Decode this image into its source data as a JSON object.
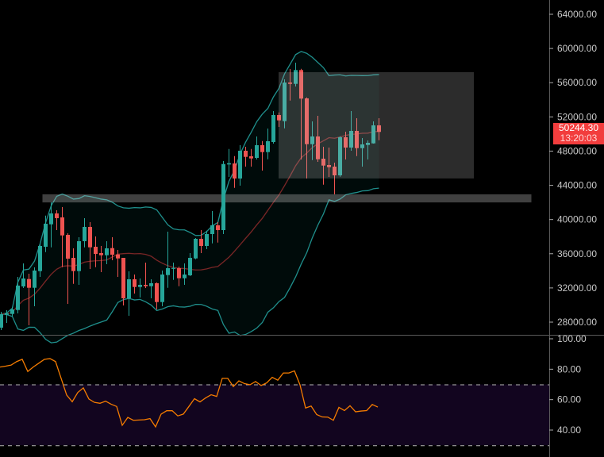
{
  "chart_data": {
    "type": "candlestick",
    "price_axis": {
      "ticks": [
        "64000.00",
        "60000.00",
        "56000.00",
        "52000.00",
        "48000.00",
        "44000.00",
        "40000.00",
        "36000.00",
        "32000.00",
        "28000.00"
      ],
      "range": [
        28000,
        64000
      ]
    },
    "rsi_axis": {
      "ticks": [
        "100.00",
        "80.00",
        "60.00",
        "40.00"
      ],
      "range": [
        30,
        100
      ],
      "bands": [
        30,
        70
      ]
    },
    "last_price": {
      "value": "50244.30",
      "countdown": "13:20:03"
    },
    "colors": {
      "up": "#26a69a",
      "down": "#ef5350",
      "band": "#1f8f8c",
      "basis": "#7a2626",
      "rsi": "#f57c00",
      "rsi_fill": "#12051f",
      "last_price": "#f23d3d"
    },
    "candles_ohlc": [
      [
        27352,
        29207,
        27074,
        28929
      ],
      [
        28864,
        29393,
        27909,
        29022
      ],
      [
        28957,
        29792,
        28651,
        29486
      ],
      [
        29421,
        33290,
        29022,
        32269
      ],
      [
        32176,
        34867,
        31991,
        33104
      ],
      [
        33039,
        33661,
        27630,
        32019
      ],
      [
        32019,
        34403,
        29857,
        34032
      ],
      [
        33967,
        37094,
        33290,
        36908
      ],
      [
        36815,
        40462,
        36194,
        39506
      ],
      [
        39441,
        42011,
        36750,
        40712
      ],
      [
        40712,
        41083,
        38764,
        40155
      ],
      [
        40248,
        41454,
        34431,
        38142
      ],
      [
        38207,
        38393,
        30135,
        35424
      ],
      [
        35516,
        36630,
        32483,
        33967
      ],
      [
        33967,
        37929,
        32362,
        37465
      ],
      [
        37465,
        40155,
        36750,
        39135
      ],
      [
        39135,
        39692,
        34218,
        36750
      ],
      [
        36815,
        38022,
        34431,
        35980
      ],
      [
        36073,
        36908,
        33846,
        35823
      ],
      [
        35823,
        37465,
        34774,
        36630
      ],
      [
        36658,
        37929,
        35238,
        35888
      ],
      [
        35915,
        36444,
        33290,
        35451
      ],
      [
        35516,
        35516,
        29950,
        30785
      ],
      [
        30785,
        33939,
        28744,
        33011
      ],
      [
        33011,
        33568,
        31341,
        32111
      ],
      [
        32111,
        33104,
        30877,
        32362
      ],
      [
        32362,
        34960,
        31991,
        32204
      ],
      [
        32204,
        33011,
        30785,
        32548
      ],
      [
        32548,
        32640,
        29486,
        30349
      ],
      [
        30349,
        34032,
        29857,
        33568
      ],
      [
        33503,
        38578,
        32019,
        34310
      ],
      [
        34245,
        34960,
        32946,
        34338
      ],
      [
        34310,
        34496,
        32204,
        33132
      ],
      [
        33132,
        34867,
        32362,
        33568
      ],
      [
        33475,
        36073,
        33383,
        35516
      ],
      [
        35451,
        37836,
        35359,
        37743
      ],
      [
        37743,
        38764,
        36073,
        36908
      ],
      [
        36908,
        38699,
        36537,
        38300
      ],
      [
        38300,
        40991,
        37214,
        39320
      ],
      [
        39320,
        39692,
        37307,
        38764
      ],
      [
        38764,
        46836,
        38300,
        46492
      ],
      [
        46437,
        48255,
        44980,
        46585
      ],
      [
        46557,
        47420,
        43709,
        44794
      ],
      [
        44794,
        48691,
        43959,
        48042
      ],
      [
        48042,
        48506,
        46186,
        47327
      ],
      [
        47392,
        48255,
        46186,
        47142
      ],
      [
        47207,
        49712,
        47021,
        48691
      ],
      [
        48691,
        49183,
        45722,
        47884
      ],
      [
        47884,
        50640,
        47049,
        49155
      ],
      [
        49062,
        52681,
        48877,
        52217
      ],
      [
        52217,
        52523,
        50825,
        51595
      ],
      [
        51502,
        56392,
        50667,
        56021
      ],
      [
        56021,
        57598,
        53915,
        55863
      ],
      [
        55863,
        58340,
        55557,
        57477
      ],
      [
        57477,
        57626,
        47021,
        54137
      ],
      [
        54165,
        54286,
        44794,
        48812
      ],
      [
        48812,
        51475,
        46956,
        49712
      ],
      [
        49712,
        52124,
        46743,
        47049
      ],
      [
        47114,
        48506,
        44080,
        46307
      ],
      [
        46372,
        48413,
        44980,
        46121
      ],
      [
        46186,
        46650,
        42939,
        45166
      ],
      [
        45166,
        49740,
        45008,
        49619
      ],
      [
        49619,
        50269,
        47021,
        48413
      ],
      [
        48413,
        52681,
        48042,
        50361
      ],
      [
        50361,
        51846,
        47420,
        48348
      ],
      [
        48348,
        49526,
        46186,
        48784
      ],
      [
        48719,
        49248,
        47021,
        48970
      ],
      [
        48905,
        51475,
        48877,
        51011
      ],
      [
        51011,
        51846,
        49276,
        50244.3
      ]
    ],
    "rsi": [
      81.4,
      82,
      82.7,
      85,
      86.5,
      78.5,
      81.5,
      84,
      86.5,
      87,
      85,
      74,
      63,
      58.6,
      64.7,
      67.7,
      60.4,
      58.2,
      57.6,
      59,
      57,
      55.5,
      43.1,
      48.3,
      46.4,
      46.6,
      46.8,
      47.5,
      42.1,
      50.5,
      52.7,
      52.7,
      49.3,
      50.5,
      55.5,
      60.6,
      58.5,
      61.1,
      63.2,
      62.1,
      74,
      74,
      68.6,
      72.3,
      70.5,
      69.8,
      71.9,
      69.3,
      71,
      74.7,
      72.8,
      77.5,
      77.5,
      78.9,
      69.7,
      54.5,
      55.8,
      50.2,
      48.6,
      48.5,
      46.4,
      54.9,
      52.8,
      56,
      52,
      52.5,
      52.8,
      56.8,
      55.1
    ],
    "zones": [
      {
        "name": "support-zone",
        "price_low": 42000,
        "price_high": 42950,
        "from_index": 8,
        "to_index": 97
      },
      {
        "name": "range-box",
        "price_low": 44800,
        "price_high": 57230,
        "from_index": 50,
        "to_index": 85
      }
    ]
  }
}
